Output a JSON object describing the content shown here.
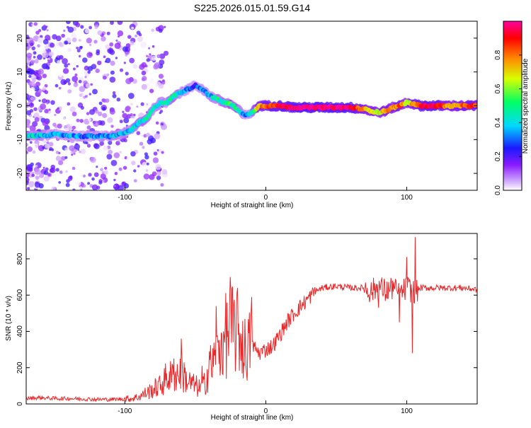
{
  "title": "S225.2026.015.01.59.G14",
  "colors": {
    "snr_line": "#e8282a",
    "axis": "#000000"
  },
  "chart_data": [
    {
      "type": "heatmap",
      "name": "spectrogram",
      "xlabel": "Height of straight line (km)",
      "ylabel": "Frequency (Hz)",
      "xlim": [
        -170,
        150
      ],
      "ylim": [
        -25,
        25
      ],
      "xticks": [
        -100,
        0,
        100
      ],
      "yticks": [
        -20,
        -10,
        0,
        10,
        20
      ],
      "colorbar": {
        "label": "Normalized spectral amplitude",
        "range": [
          0,
          1
        ],
        "ticks": [
          "0.0",
          "0.2",
          "0.4",
          "0.6",
          "0.8"
        ],
        "colormap": [
          "#ffffff",
          "#8a1aff",
          "#1a1aff",
          "#00d8ff",
          "#00ff66",
          "#d8ff00",
          "#ff8800",
          "#ff0000",
          "#ff00a0"
        ]
      },
      "ridge": {
        "x": [
          -170,
          -150,
          -130,
          -110,
          -100,
          -95,
          -90,
          -85,
          -80,
          -75,
          -70,
          -65,
          -60,
          -55,
          -50,
          -45,
          -40,
          -35,
          -30,
          -25,
          -20,
          -15,
          -10,
          -5,
          0,
          10,
          20,
          40,
          60,
          70,
          80,
          85,
          90,
          95,
          100,
          110,
          120,
          130,
          150
        ],
        "y": [
          -9,
          -8.5,
          -9,
          -9,
          -8,
          -7,
          -5,
          -4,
          -1,
          1,
          1,
          3,
          4,
          5,
          6,
          5,
          3,
          2,
          1,
          0.5,
          -1,
          -3,
          -2,
          0,
          0,
          0,
          -0.5,
          -0.5,
          -0.5,
          -1,
          -2,
          -1.5,
          -0.5,
          0,
          1,
          0,
          0,
          0,
          0
        ],
        "amplitude": [
          0.4,
          0.35,
          0.3,
          0.35,
          0.35,
          0.4,
          0.4,
          0.45,
          0.4,
          0.4,
          0.4,
          0.45,
          0.35,
          0.3,
          0.25,
          0.3,
          0.35,
          0.45,
          0.45,
          0.5,
          0.45,
          0.3,
          0.4,
          0.7,
          0.8,
          0.9,
          1.0,
          1.0,
          0.95,
          0.7,
          0.6,
          0.75,
          0.7,
          0.8,
          0.6,
          0.9,
          0.95,
          0.7,
          0.85
        ]
      }
    },
    {
      "type": "line",
      "name": "snr",
      "xlabel": "Height of straight line (km)",
      "ylabel": "SNR (10 * v/v)",
      "xlim": [
        -170,
        150
      ],
      "ylim": [
        0,
        940
      ],
      "xticks": [
        -100,
        0,
        100
      ],
      "yticks": [
        0,
        200,
        400,
        600,
        800
      ],
      "series": [
        {
          "name": "SNR",
          "x": [
            -170,
            -160,
            -150,
            -140,
            -130,
            -120,
            -110,
            -100,
            -95,
            -90,
            -85,
            -80,
            -75,
            -70,
            -65,
            -60,
            -55,
            -50,
            -45,
            -40,
            -35,
            -30,
            -25,
            -20,
            -15,
            -10,
            -5,
            0,
            5,
            10,
            15,
            20,
            25,
            30,
            35,
            40,
            50,
            60,
            70,
            75,
            80,
            85,
            90,
            95,
            100,
            105,
            110,
            120,
            130,
            140,
            150
          ],
          "y": [
            30,
            35,
            30,
            30,
            28,
            25,
            25,
            28,
            30,
            40,
            60,
            80,
            100,
            150,
            150,
            180,
            120,
            100,
            80,
            200,
            250,
            380,
            400,
            420,
            300,
            330,
            280,
            300,
            320,
            380,
            450,
            500,
            540,
            580,
            620,
            640,
            650,
            640,
            640,
            620,
            650,
            620,
            640,
            600,
            640,
            620,
            640,
            640,
            640,
            640,
            630
          ]
        }
      ],
      "spikes": {
        "x": [
          -65,
          -60,
          -55,
          -45,
          -40,
          -35,
          -30,
          -25,
          -20,
          -15,
          -10,
          75,
          80,
          90,
          95,
          100,
          104,
          106
        ],
        "y": [
          250,
          360,
          110,
          210,
          290,
          540,
          400,
          700,
          640,
          210,
          590,
          670,
          530,
          680,
          450,
          810,
          280,
          920
        ]
      }
    }
  ]
}
